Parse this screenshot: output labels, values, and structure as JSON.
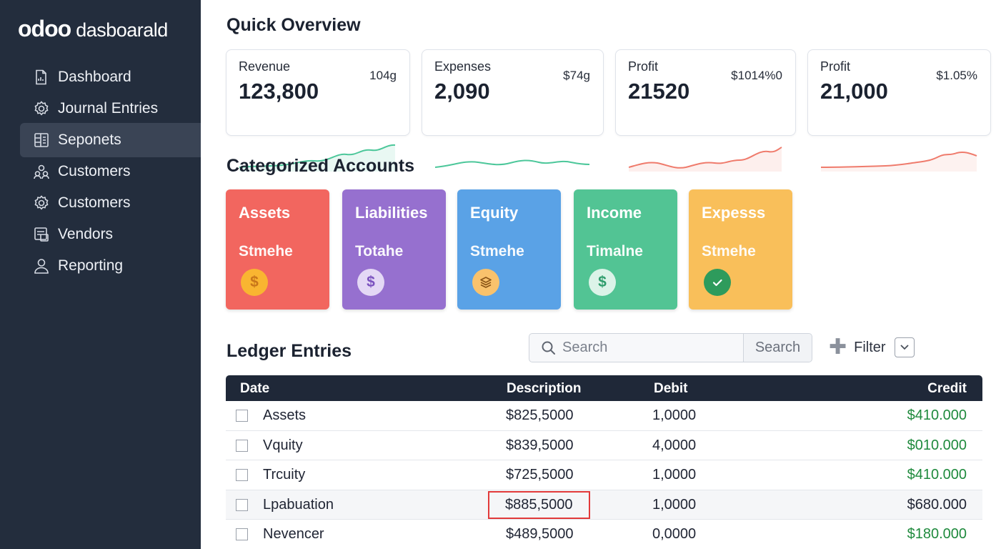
{
  "app": {
    "logo_mark": "odoo",
    "logo_text": "dasboarald"
  },
  "sidebar": {
    "items": [
      {
        "label": "Dashboard",
        "icon": "document-chart-icon",
        "active": false
      },
      {
        "label": "Journal Entries",
        "icon": "gear-icon",
        "active": false
      },
      {
        "label": "Seponets",
        "icon": "grid-list-icon",
        "active": true
      },
      {
        "label": "Customers",
        "icon": "users-icon",
        "active": false
      },
      {
        "label": "Customers",
        "icon": "gear-icon",
        "active": false
      },
      {
        "label": "Vendors",
        "icon": "vendor-card-icon",
        "active": false
      },
      {
        "label": "Reporting",
        "icon": "user-icon",
        "active": false
      }
    ]
  },
  "overview": {
    "title": "Quick Overview",
    "cards": [
      {
        "label": "Revenue",
        "value": "123,800",
        "delta": "104g",
        "color": "#4cc79a"
      },
      {
        "label": "Expenses",
        "value": "2,090",
        "delta": "$74g",
        "color": "#4cc79a"
      },
      {
        "label": "Profit",
        "value": "21520",
        "delta": "$1014%0",
        "color": "#ef7b6c"
      },
      {
        "label": "Profit",
        "value": "21,000",
        "delta": "$1.05%",
        "color": "#ef7b6c"
      }
    ]
  },
  "categories": {
    "title": "Categorized Accounts",
    "items": [
      {
        "name": "Assets",
        "sub": "Stmehe",
        "icon": "$",
        "color": "#f2665f"
      },
      {
        "name": "Liabilities",
        "sub": "Totahe",
        "icon": "$",
        "color": "#9670cf"
      },
      {
        "name": "Equity",
        "sub": "Stmehe",
        "icon": "layers",
        "color": "#5aa2e6"
      },
      {
        "name": "Income",
        "sub": "Timalne",
        "icon": "$",
        "color": "#52c494"
      },
      {
        "name": "Expesss",
        "sub": "Stmehe",
        "icon": "check",
        "color": "#f9bf5a"
      }
    ]
  },
  "ledger": {
    "title": "Ledger Entries",
    "search_placeholder": "Search",
    "search_button": "Search",
    "filter_label": "Filter",
    "columns": {
      "date": "Date",
      "description": "Description",
      "debit": "Debit",
      "credit": "Credit"
    },
    "rows": [
      {
        "date": "Assets",
        "description": "$825,5000",
        "debit": "1,0000",
        "credit": "$410.000"
      },
      {
        "date": "Vquity",
        "description": "$839,5000",
        "debit": "4,0000",
        "credit": "$010.000"
      },
      {
        "date": "Trcuity",
        "description": "$725,5000",
        "debit": "1,0000",
        "credit": "$410.000"
      },
      {
        "date": "Lpabuation",
        "description": "$885,5000",
        "debit": "1,0000",
        "credit": "$680.000"
      },
      {
        "date": "Nevencer",
        "description": "$489,5000",
        "debit": "0,0000",
        "credit": "$180.000"
      }
    ]
  }
}
